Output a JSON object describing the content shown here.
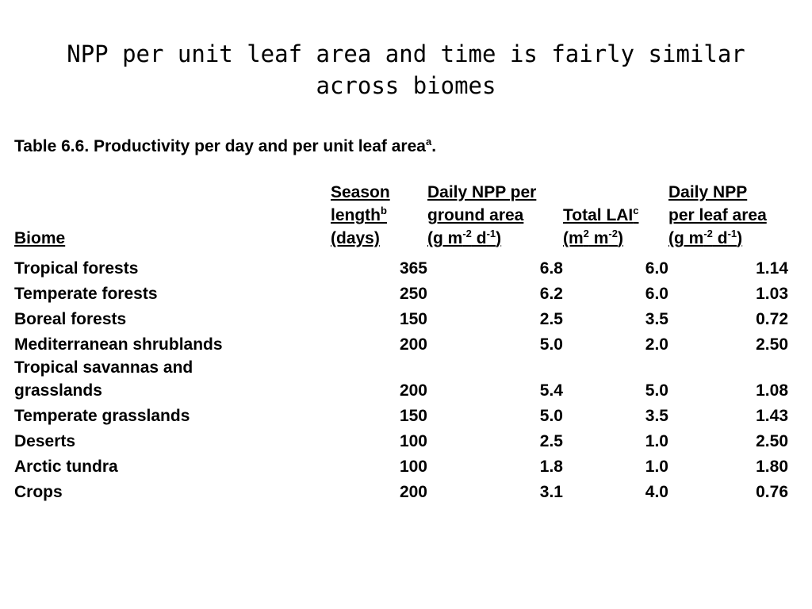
{
  "slide": {
    "title": "NPP per unit leaf area and time is fairly similar across biomes"
  },
  "table": {
    "caption_main": "Table 6.6. Productivity per day and per unit leaf area",
    "caption_sup": "a",
    "caption_end": ".",
    "headers": {
      "biome": "Biome",
      "season": {
        "line1": "Season",
        "line2": "length",
        "line2_sup": "b",
        "line3": "(days)"
      },
      "npp_ground": {
        "line1": "Daily NPP per",
        "line2": "ground area",
        "unit_a": "(g m",
        "unit_sup1": "-2",
        "unit_b": " d",
        "unit_sup2": "-1",
        "unit_c": ")"
      },
      "lai": {
        "line1": "Total LAI",
        "line1_sup": "c",
        "unit_a": "(m",
        "unit_sup1": "2",
        "unit_b": " m",
        "unit_sup2": "-2",
        "unit_c": ")"
      },
      "npp_leaf": {
        "line1": "Daily NPP",
        "line2": "per leaf area",
        "unit_a": "(g m",
        "unit_sup1": "-2",
        "unit_b": " d",
        "unit_sup2": "-1",
        "unit_c": ")"
      }
    },
    "rows": [
      {
        "biome": "Tropical forests",
        "season": "365",
        "npp_ground": "6.8",
        "lai": "6.0",
        "npp_leaf": "1.14"
      },
      {
        "biome": "Temperate forests",
        "season": "250",
        "npp_ground": "6.2",
        "lai": "6.0",
        "npp_leaf": "1.03"
      },
      {
        "biome": "Boreal forests",
        "season": "150",
        "npp_ground": "2.5",
        "lai": "3.5",
        "npp_leaf": "0.72"
      },
      {
        "biome": "Mediterranean shrublands",
        "season": "200",
        "npp_ground": "5.0",
        "lai": "2.0",
        "npp_leaf": "2.50"
      },
      {
        "biome": "Tropical savannas and",
        "biome_line2": "grasslands",
        "season": "200",
        "npp_ground": "5.4",
        "lai": "5.0",
        "npp_leaf": "1.08"
      },
      {
        "biome": "Temperate grasslands",
        "season": "150",
        "npp_ground": "5.0",
        "lai": "3.5",
        "npp_leaf": "1.43"
      },
      {
        "biome": "Deserts",
        "season": "100",
        "npp_ground": "2.5",
        "lai": "1.0",
        "npp_leaf": "2.50"
      },
      {
        "biome": "Arctic tundra",
        "season": "100",
        "npp_ground": "1.8",
        "lai": "1.0",
        "npp_leaf": "1.80"
      },
      {
        "biome": "Crops",
        "season": "200",
        "npp_ground": "3.1",
        "lai": "4.0",
        "npp_leaf": "0.76"
      }
    ]
  }
}
